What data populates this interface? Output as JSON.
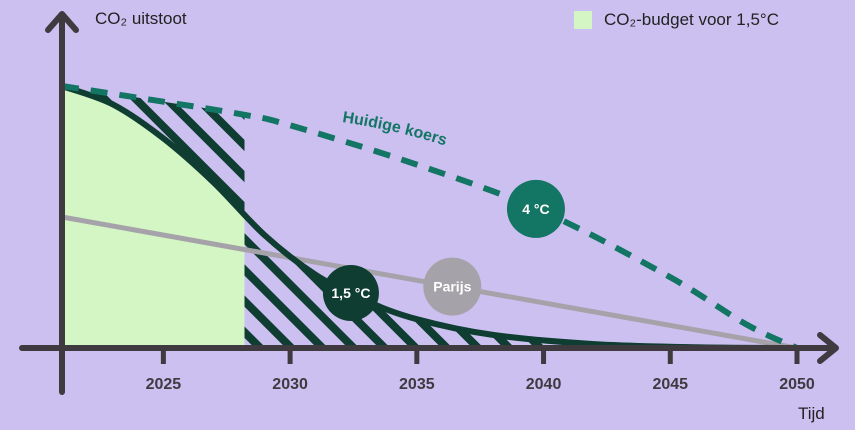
{
  "chart_data": {
    "type": "line",
    "ylabel": "CO₂ uitstoot",
    "xlabel": "Tijd",
    "xlim": [
      2021,
      2050
    ],
    "ylim": [
      0,
      100
    ],
    "x_ticks": [
      2025,
      2030,
      2035,
      2040,
      2045,
      2050
    ],
    "legend": {
      "label": "CO₂-budget voor 1,5°C",
      "color": "#d4f5c4",
      "position": "top-right"
    },
    "budget_end_year": 2028.2,
    "series": [
      {
        "name": "Huidige koers",
        "marker": "4 °C",
        "color": "#137563",
        "style": "dashed",
        "x": [
          2021,
          2025,
          2028.2,
          2030,
          2035,
          2040,
          2045,
          2048,
          2050
        ],
        "y": [
          100,
          94,
          89,
          85,
          70,
          52,
          27,
          9,
          0
        ]
      },
      {
        "name": "",
        "marker": "1,5 °C",
        "color": "#0f3d32",
        "style": "solid",
        "x": [
          2021,
          2023,
          2025,
          2027,
          2029,
          2031,
          2033,
          2035,
          2038,
          2042,
          2046,
          2050
        ],
        "y": [
          100,
          93,
          80,
          63,
          43,
          28,
          18,
          11,
          5,
          1.5,
          0.3,
          0
        ]
      },
      {
        "name": "",
        "marker": "Parijs",
        "color": "#a5a3a9",
        "style": "solid",
        "x": [
          2021,
          2050
        ],
        "y": [
          50,
          0
        ]
      }
    ],
    "annotations": [
      {
        "text": "Huidige koers",
        "color": "#137563"
      }
    ],
    "colors": {
      "background": "#ccc0f0",
      "axis": "#3e3a40",
      "budget_fill": "#d4f5c4",
      "hatch": "#0f3d32"
    }
  }
}
